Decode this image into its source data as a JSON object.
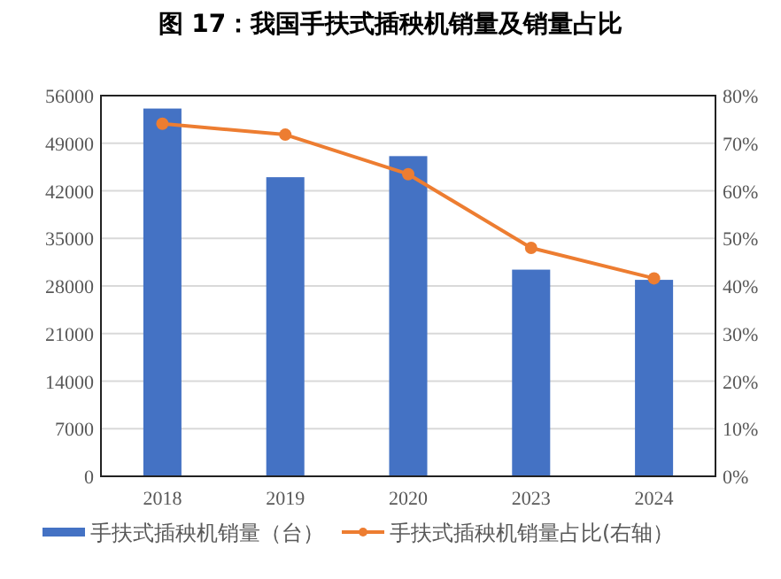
{
  "chart_data": {
    "type": "bar",
    "title": "图 17：我国手扶式插秧机销量及销量占比",
    "categories": [
      "2018",
      "2019",
      "2020",
      "2023",
      "2024"
    ],
    "series": [
      {
        "name": "手扶式插秧机销量（台）",
        "color": "#4472c4",
        "values": [
          54100,
          44000,
          47100,
          30400,
          28900
        ]
      },
      {
        "name": "手扶式插秧机销量占比(右轴）",
        "type": "line",
        "axis": "y2",
        "color": "#ed7d31",
        "marker": "circle",
        "values": [
          74.1,
          71.8,
          63.5,
          48.0,
          41.6
        ]
      }
    ],
    "ylim": [
      0,
      56000
    ],
    "yticks": [
      0,
      7000,
      14000,
      21000,
      28000,
      35000,
      42000,
      49000,
      56000
    ],
    "y2lim": [
      0,
      80
    ],
    "y2ticks": [
      {
        "value": 0,
        "label": "0%"
      },
      {
        "value": 10,
        "label": "10%"
      },
      {
        "value": 20,
        "label": "20%"
      },
      {
        "value": 30,
        "label": "30%"
      },
      {
        "value": 40,
        "label": "40%"
      },
      {
        "value": 50,
        "label": "50%"
      },
      {
        "value": 60,
        "label": "60%"
      },
      {
        "value": 70,
        "label": "70%"
      },
      {
        "value": 80,
        "label": "80%"
      }
    ],
    "grid": "y",
    "legend": "bottom"
  }
}
